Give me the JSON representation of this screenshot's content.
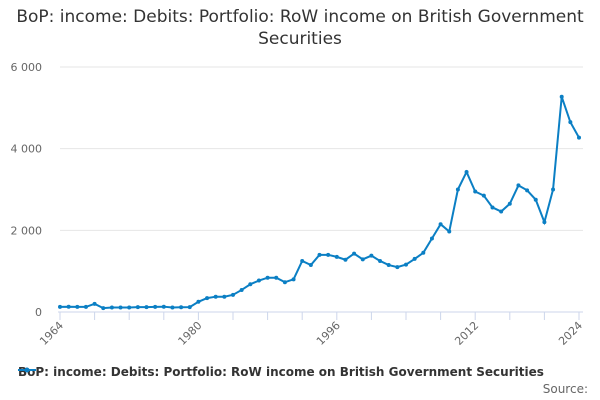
{
  "chart_data": {
    "type": "line",
    "title": "BoP: income: Debits: Portfolio: RoW income on British Government Securities",
    "xlabel": "",
    "ylabel": "",
    "x_tick_labels": [
      "1964",
      "1980",
      "1996",
      "2012",
      "2024"
    ],
    "y_tick_labels": [
      "0",
      "2 000",
      "4 000",
      "6 000"
    ],
    "ylim": [
      0,
      6000
    ],
    "xlim": [
      1964,
      2024
    ],
    "grid": true,
    "legend_position": "bottom",
    "color": "#0b7fc4",
    "series": [
      {
        "name": "BoP: income: Debits: Portfolio: RoW income on British Government Securities",
        "x": [
          1964,
          1965,
          1966,
          1967,
          1968,
          1969,
          1970,
          1971,
          1972,
          1973,
          1974,
          1975,
          1976,
          1977,
          1978,
          1979,
          1980,
          1981,
          1982,
          1983,
          1984,
          1985,
          1986,
          1987,
          1988,
          1989,
          1990,
          1991,
          1992,
          1993,
          1994,
          1995,
          1996,
          1997,
          1998,
          1999,
          2000,
          2001,
          2002,
          2003,
          2004,
          2005,
          2006,
          2007,
          2008,
          2009,
          2010,
          2011,
          2012,
          2013,
          2014,
          2015,
          2016,
          2017,
          2018,
          2019,
          2020,
          2021,
          2022,
          2023,
          2024
        ],
        "values": [
          125,
          130,
          125,
          125,
          200,
          95,
          110,
          110,
          110,
          120,
          120,
          125,
          130,
          110,
          115,
          120,
          250,
          340,
          375,
          375,
          420,
          540,
          680,
          770,
          840,
          840,
          730,
          800,
          1250,
          1150,
          1400,
          1400,
          1350,
          1280,
          1430,
          1290,
          1380,
          1250,
          1150,
          1100,
          1160,
          1300,
          1450,
          1800,
          2150,
          1970,
          3000,
          3430,
          2950,
          2850,
          2560,
          2460,
          2650,
          3100,
          2980,
          2750,
          2200,
          3000,
          5270,
          4650,
          4270
        ]
      }
    ]
  },
  "source_label": "Source:"
}
